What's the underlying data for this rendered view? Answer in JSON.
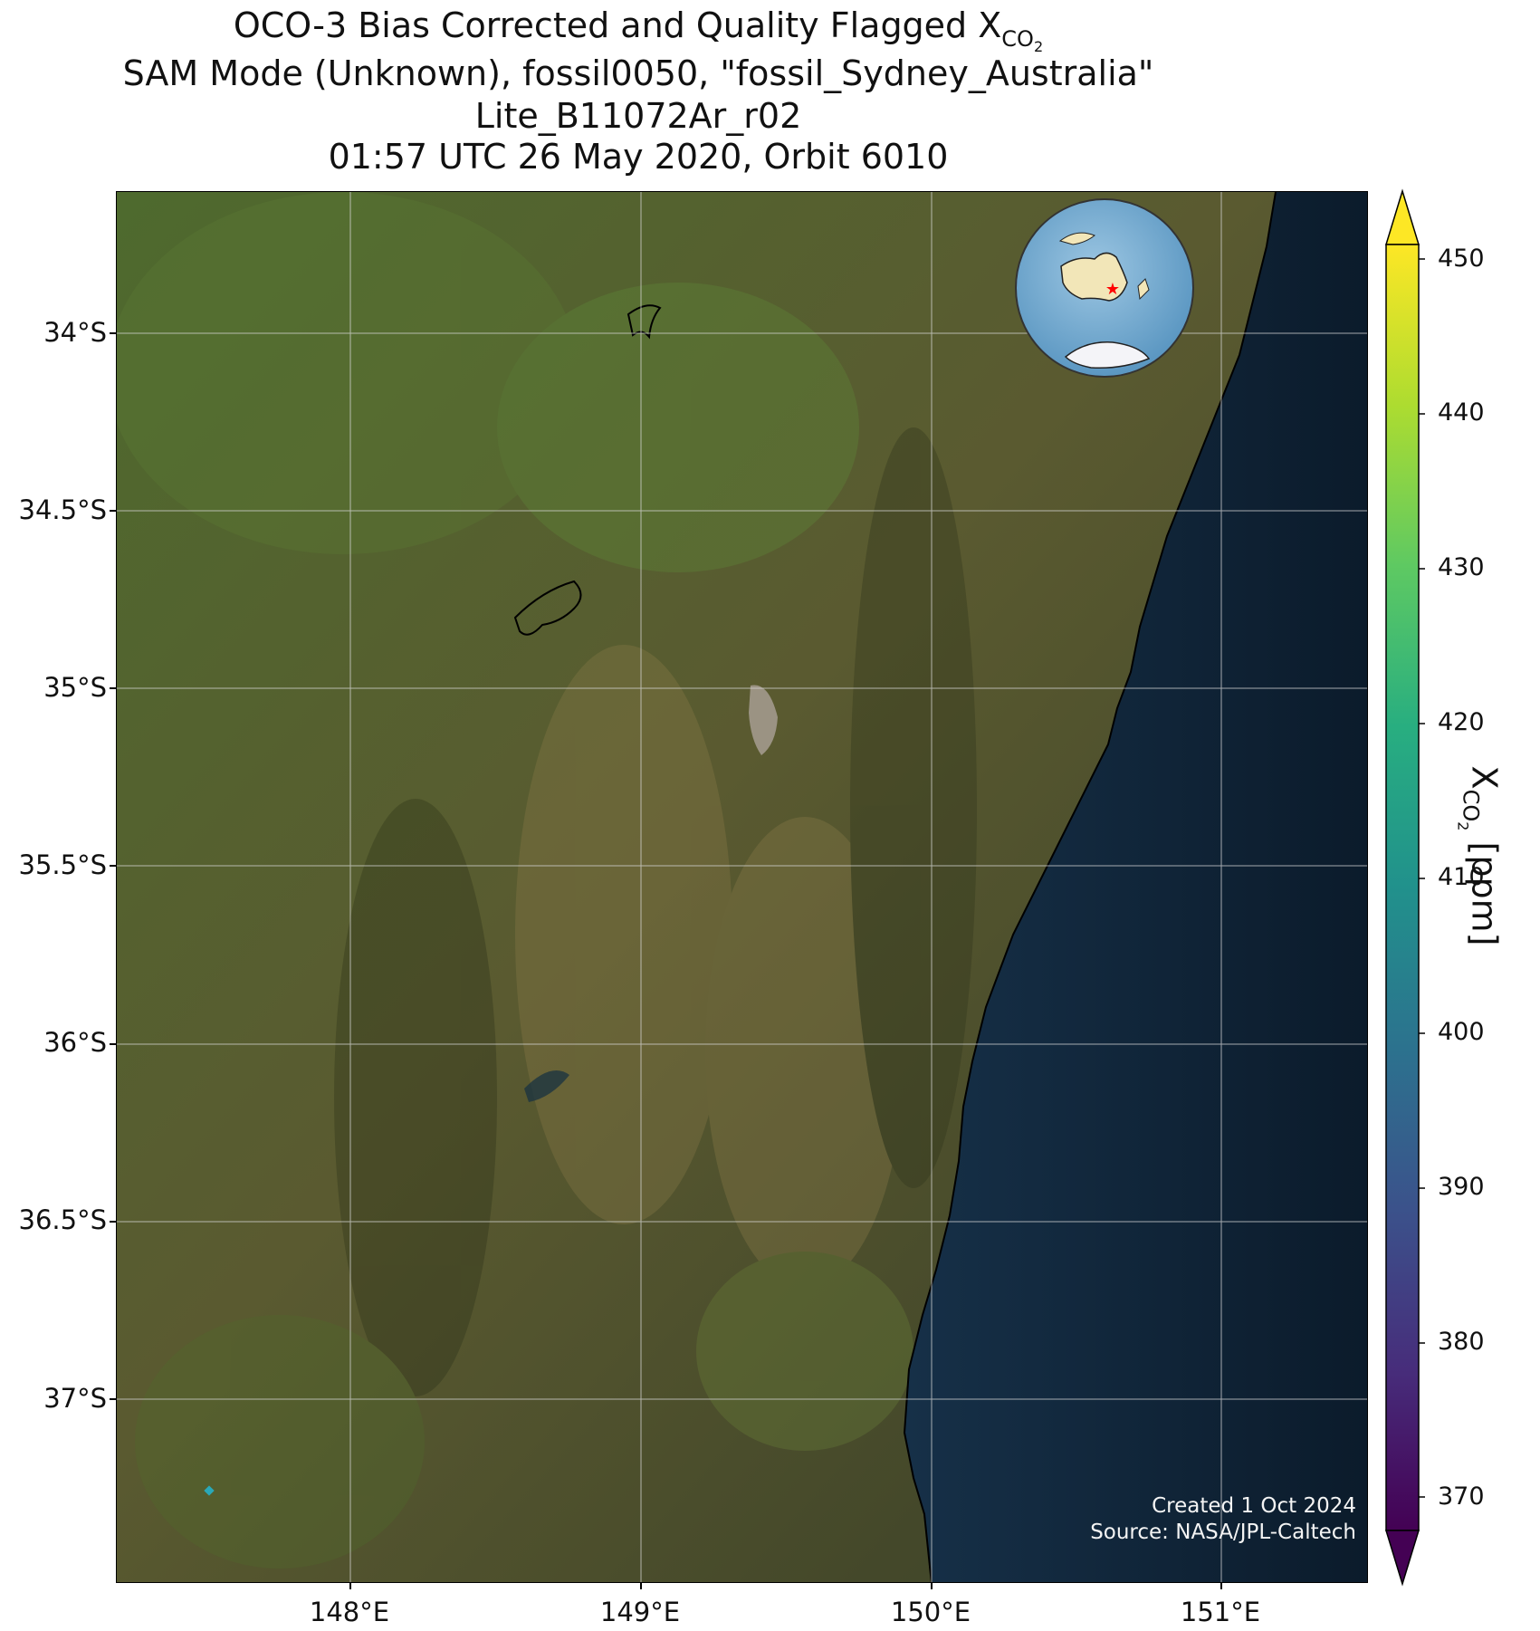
{
  "title": {
    "line1_prefix": "OCO-3 Bias Corrected and Quality Flagged X",
    "line1_sub": "CO",
    "line1_sub2": "2",
    "line2": "SAM Mode (Unknown), fossil0050, \"fossil_Sydney_Australia\"",
    "line3": "Lite_B11072Ar_r02",
    "line4": "01:57 UTC 26 May 2020, Orbit 6010"
  },
  "map": {
    "lat_ticks": [
      "34°S",
      "34.5°S",
      "35°S",
      "35.5°S",
      "36°S",
      "36.5°S",
      "37°S"
    ],
    "lon_ticks": [
      "148°E",
      "149°E",
      "150°E",
      "151°E"
    ],
    "lat_values": [
      -34.0,
      -34.5,
      -35.0,
      -35.5,
      -36.0,
      -36.5,
      -37.0
    ],
    "lon_values": [
      148.0,
      149.0,
      150.0,
      151.0
    ],
    "extent": {
      "lon": [
        147.2,
        151.5
      ],
      "lat": [
        -37.5,
        -33.6
      ]
    },
    "grid": true,
    "basemap": "satellite imagery",
    "colors": {
      "land": "#4a5a2c",
      "ocean": "#0d2233",
      "grid": "#d8d8d8"
    }
  },
  "inset_globe": {
    "marker": "red-star",
    "marker_color": "#ff0000",
    "ocean_color": "#7fb3d5",
    "land_color": "#f2e6b8"
  },
  "colorbar": {
    "label_main": "X",
    "label_sub": "CO",
    "label_sub2": "2",
    "label_unit": " [ppm]",
    "ticks": [
      "370",
      "380",
      "390",
      "400",
      "410",
      "420",
      "430",
      "440",
      "450"
    ],
    "tick_values": [
      370,
      380,
      390,
      400,
      410,
      420,
      430,
      440,
      450
    ],
    "cmap": "viridis",
    "extend": "both"
  },
  "credit": {
    "line1": "Created 1 Oct 2024",
    "line2": "Source: NASA/JPL-Caltech"
  }
}
